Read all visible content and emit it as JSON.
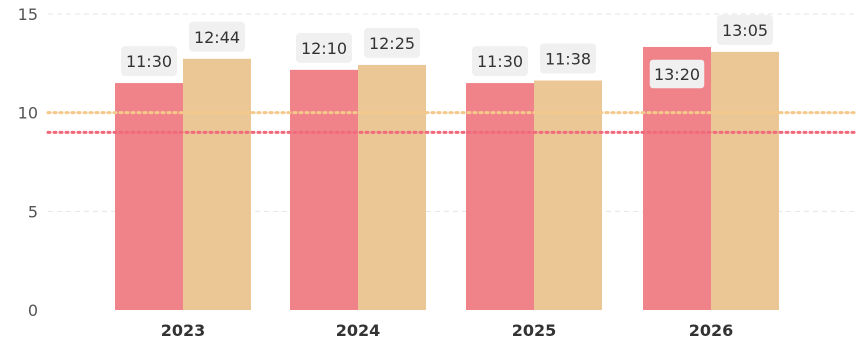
{
  "chart_data": {
    "type": "bar",
    "title": "",
    "xlabel": "",
    "ylabel": "",
    "categories": [
      "2023",
      "2024",
      "2025",
      "2026"
    ],
    "ylim": [
      0,
      15
    ],
    "yticks": [
      0,
      5,
      10,
      15
    ],
    "grid": true,
    "series": [
      {
        "color": "#f0838a",
        "values": [
          11.5,
          12.17,
          11.5,
          13.33
        ],
        "labels": [
          "11:30",
          "12:10",
          "11:30",
          "13:20"
        ]
      },
      {
        "color": "#ebc795",
        "values": [
          12.73,
          12.42,
          11.63,
          13.08
        ],
        "labels": [
          "12:44",
          "12:25",
          "11:38",
          "13:05"
        ]
      }
    ],
    "reference_lines": [
      {
        "value": 10,
        "color": "#f5c98a",
        "style": "dotted"
      },
      {
        "value": 9,
        "color": "#f06a7c",
        "style": "dotted"
      }
    ],
    "label_box_colors": [
      "#f0f0f0",
      "#f0f0f0"
    ],
    "label_box_highlight": {
      "series": 0,
      "category": 3,
      "border": "#f0838a"
    }
  }
}
